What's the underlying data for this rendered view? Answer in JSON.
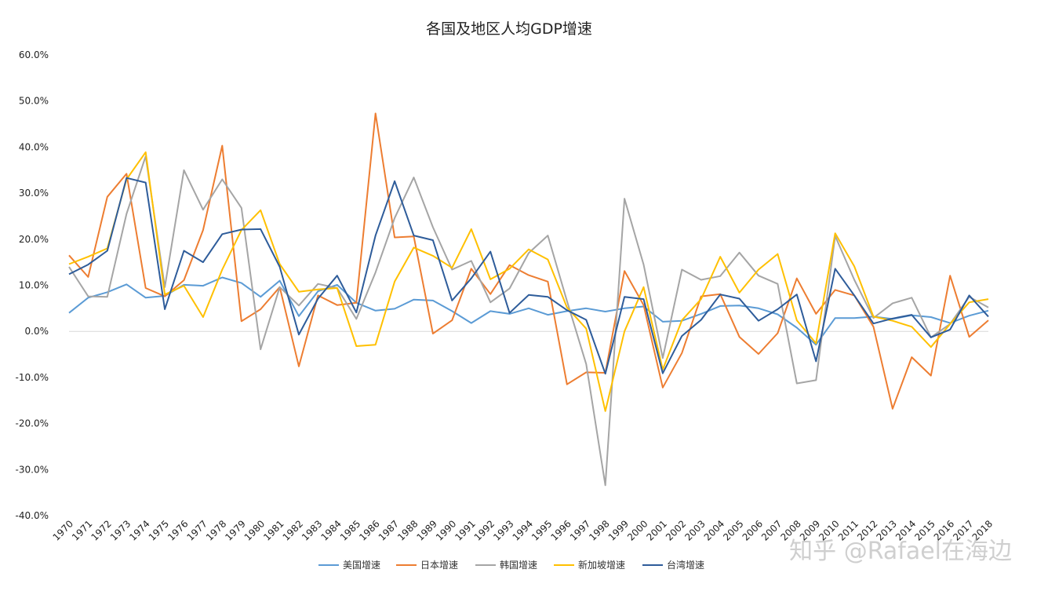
{
  "chart_data": {
    "type": "line",
    "title": "各国及地区人均GDP增速",
    "xlabel": "",
    "ylabel": "",
    "ylim": [
      -40,
      60
    ],
    "yticks": [
      -40,
      -30,
      -20,
      -10,
      0,
      10,
      20,
      30,
      40,
      50,
      60
    ],
    "ytick_labels": [
      "-40.0%",
      "-30.0%",
      "-20.0%",
      "-10.0%",
      "0.0%",
      "10.0%",
      "20.0%",
      "30.0%",
      "40.0%",
      "50.0%",
      "60.0%"
    ],
    "x": [
      "1970",
      "1971",
      "1972",
      "1973",
      "1974",
      "1975",
      "1976",
      "1977",
      "1978",
      "1979",
      "1980",
      "1981",
      "1982",
      "1983",
      "1984",
      "1985",
      "1986",
      "1987",
      "1988",
      "1989",
      "1990",
      "1991",
      "1992",
      "1993",
      "1994",
      "1995",
      "1996",
      "1997",
      "1998",
      "1999",
      "2000",
      "2001",
      "2002",
      "2003",
      "2004",
      "2005",
      "2006",
      "2007",
      "2008",
      "2009",
      "2010",
      "2011",
      "2012",
      "2013",
      "2014",
      "2015",
      "2016",
      "2017",
      "2018"
    ],
    "legend_position": "bottom",
    "series": [
      {
        "name": "美国增速",
        "color": "#5b9bd5",
        "values": [
          4.0,
          7.3,
          8.5,
          10.2,
          7.3,
          7.7,
          10.1,
          9.9,
          11.7,
          10.5,
          7.5,
          11.0,
          3.3,
          8.7,
          10.1,
          6.2,
          4.5,
          4.9,
          6.9,
          6.7,
          4.4,
          1.8,
          4.4,
          3.8,
          5.0,
          3.6,
          4.4,
          5.0,
          4.3,
          5.0,
          5.4,
          2.1,
          2.3,
          3.8,
          5.5,
          5.6,
          5.0,
          3.7,
          0.8,
          -2.9,
          2.9,
          2.9,
          3.2,
          2.7,
          3.5,
          3.1,
          1.8,
          3.4,
          4.5
        ]
      },
      {
        "name": "日本增速",
        "color": "#ed7d31",
        "values": [
          16.5,
          11.8,
          29.2,
          34.2,
          9.4,
          7.6,
          11.1,
          22.0,
          40.3,
          2.2,
          4.8,
          9.6,
          -7.6,
          7.8,
          5.7,
          6.2,
          47.3,
          20.4,
          20.6,
          -0.5,
          2.4,
          13.6,
          8.1,
          14.4,
          12.2,
          10.8,
          -11.5,
          -8.9,
          -9.0,
          13.1,
          5.7,
          -12.2,
          -4.7,
          7.6,
          8.1,
          -1.2,
          -4.9,
          -0.4,
          11.5,
          3.8,
          9.0,
          7.8,
          1.0,
          -16.8,
          -5.6,
          -9.6,
          12.1,
          -1.2,
          2.4
        ]
      },
      {
        "name": "韩国增速",
        "color": "#a5a5a5",
        "values": [
          14.0,
          7.6,
          7.5,
          25.5,
          38.0,
          9.6,
          35.0,
          26.4,
          33.0,
          26.8,
          -3.9,
          9.6,
          5.6,
          10.3,
          9.4,
          2.7,
          12.8,
          24.6,
          33.4,
          22.6,
          13.4,
          15.3,
          6.3,
          9.3,
          17.0,
          20.8,
          6.6,
          -7.1,
          -33.4,
          28.8,
          14.5,
          -5.8,
          13.4,
          11.2,
          12.0,
          17.1,
          12.1,
          10.3,
          -11.3,
          -10.6,
          20.7,
          11.2,
          2.9,
          6.1,
          7.3,
          -1.3,
          1.6,
          7.5,
          5.2
        ]
      },
      {
        "name": "新加坡增速",
        "color": "#ffc000",
        "values": [
          14.6,
          16.2,
          18.0,
          33.0,
          38.9,
          8.0,
          9.9,
          3.1,
          13.4,
          22.0,
          26.3,
          14.6,
          8.6,
          9.1,
          9.4,
          -3.2,
          -2.9,
          10.8,
          18.2,
          16.4,
          13.8,
          22.2,
          11.3,
          13.6,
          17.8,
          15.6,
          5.2,
          0.6,
          -17.3,
          0.0,
          9.6,
          -8.3,
          2.4,
          7.0,
          16.2,
          8.4,
          13.4,
          16.8,
          2.4,
          -2.6,
          21.3,
          14.1,
          3.2,
          2.3,
          1.0,
          -3.4,
          1.6,
          6.3,
          7.0
        ]
      },
      {
        "name": "台湾增速",
        "color": "#2e5c9a",
        "values": [
          12.4,
          14.5,
          17.5,
          33.3,
          32.3,
          4.8,
          17.5,
          15.0,
          21.1,
          22.1,
          22.2,
          14.0,
          -0.7,
          7.1,
          12.1,
          4.1,
          20.8,
          32.6,
          20.8,
          19.8,
          6.7,
          11.5,
          17.3,
          4.0,
          7.9,
          7.5,
          4.6,
          2.5,
          -9.2,
          7.5,
          7.0,
          -9.1,
          -1.0,
          2.5,
          8.0,
          7.1,
          2.3,
          4.8,
          8.0,
          -6.5,
          13.6,
          7.8,
          1.7,
          2.8,
          3.6,
          -1.3,
          0.4,
          7.8,
          3.2
        ]
      }
    ]
  },
  "watermark": "知乎 @Rafael在海边"
}
